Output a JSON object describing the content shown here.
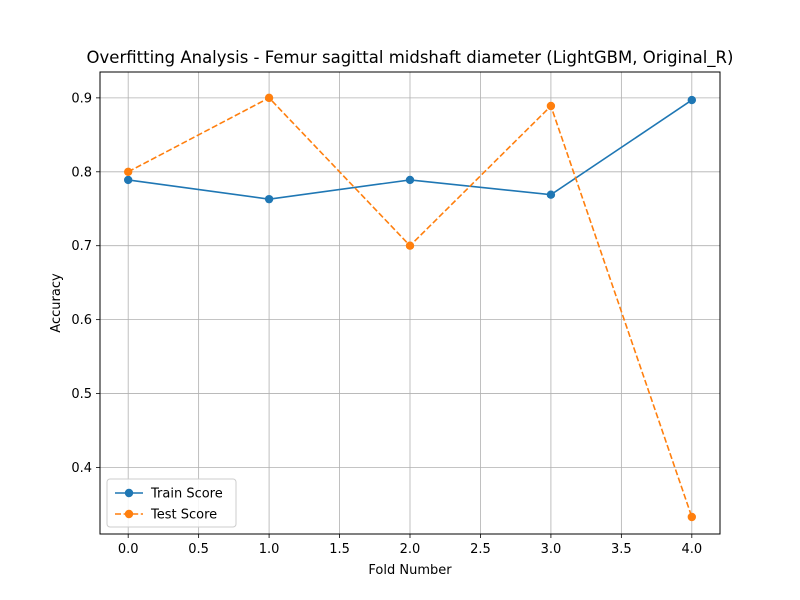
{
  "chart_data": {
    "type": "line",
    "title": "Overfitting Analysis - Femur sagittal midshaft diameter (LightGBM, Original_R)",
    "xlabel": "Fold Number",
    "ylabel": "Accuracy",
    "xlim": [
      -0.2,
      4.2
    ],
    "ylim": [
      0.31,
      0.935
    ],
    "xticks": [
      0.0,
      0.5,
      1.0,
      1.5,
      2.0,
      2.5,
      3.0,
      3.5,
      4.0
    ],
    "xtick_labels": [
      "0.0",
      "0.5",
      "1.0",
      "1.5",
      "2.0",
      "2.5",
      "3.0",
      "3.5",
      "4.0"
    ],
    "yticks": [
      0.4,
      0.5,
      0.6,
      0.7,
      0.8,
      0.9
    ],
    "ytick_labels": [
      "0.4",
      "0.5",
      "0.6",
      "0.7",
      "0.8",
      "0.9"
    ],
    "grid": true,
    "legend_position": "lower-left",
    "x": [
      0,
      1,
      2,
      3,
      4
    ],
    "series": [
      {
        "name": "Train Score",
        "values": [
          0.789,
          0.763,
          0.789,
          0.769,
          0.897
        ],
        "color": "#1f77b4",
        "line_style": "solid",
        "marker": "circle"
      },
      {
        "name": "Test Score",
        "values": [
          0.8,
          0.9,
          0.7,
          0.889,
          0.333
        ],
        "color": "#ff7f0e",
        "line_style": "dashed",
        "marker": "circle"
      }
    ]
  }
}
